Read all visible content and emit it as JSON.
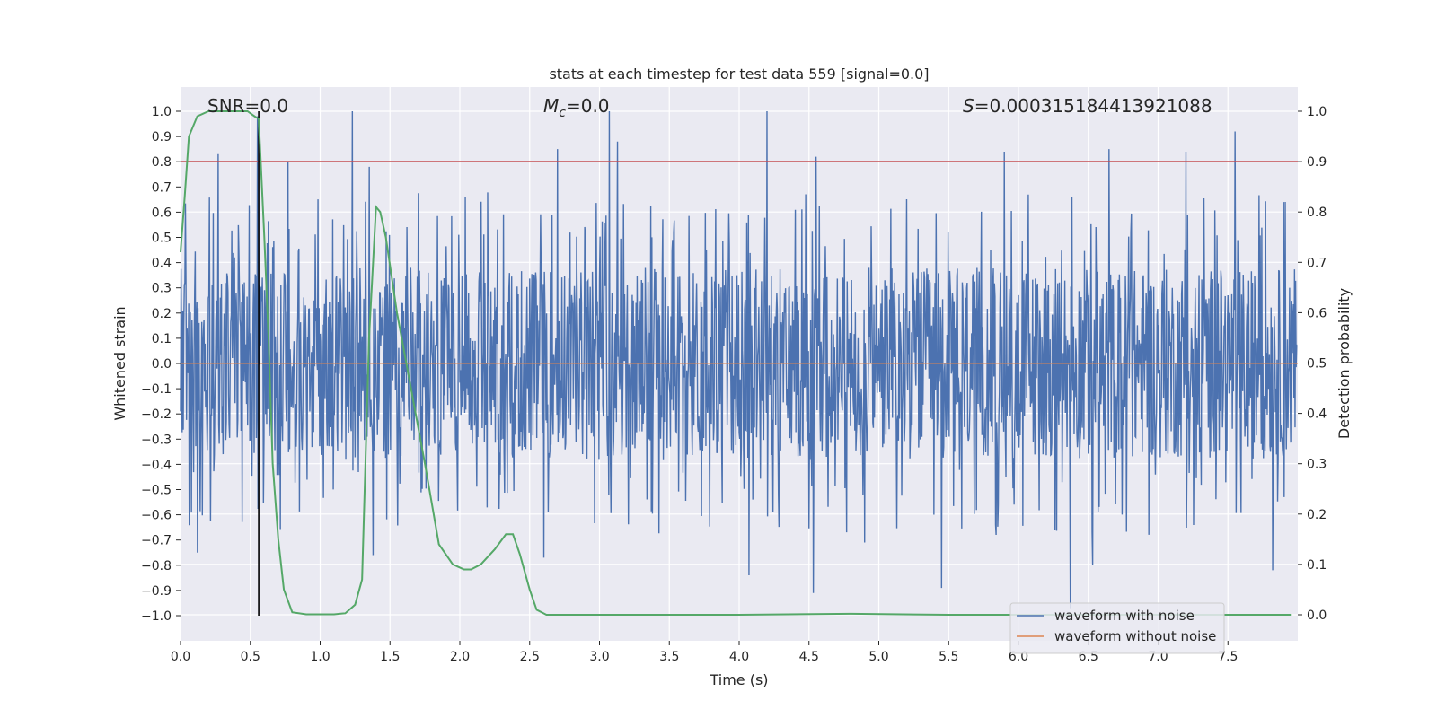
{
  "chart_data": {
    "type": "line",
    "title": "stats at each timestep for test data 559 [signal=0.0]",
    "xlabel": "Time (s)",
    "ylabel_left": "Whitened strain",
    "ylabel_right": "Detection probability",
    "xlim": [
      0.0,
      8.0
    ],
    "ylim_left": [
      -1.09,
      1.09
    ],
    "ylim_right": [
      -0.045,
      1.045
    ],
    "x_ticks": [
      "0.0",
      "0.5",
      "1.0",
      "1.5",
      "2.0",
      "2.5",
      "3.0",
      "3.5",
      "4.0",
      "4.5",
      "5.0",
      "5.5",
      "6.0",
      "6.5",
      "7.0",
      "7.5"
    ],
    "y_ticks_left": [
      "1.0",
      "0.9",
      "0.8",
      "0.7",
      "0.6",
      "0.5",
      "0.4",
      "0.3",
      "0.2",
      "0.1",
      "0.0",
      "−0.1",
      "−0.2",
      "−0.3",
      "−0.4",
      "−0.5",
      "−0.6",
      "−0.7",
      "−0.8",
      "−0.9",
      "−1.0"
    ],
    "y_ticks_right": [
      "1.0",
      "0.9",
      "0.8",
      "0.7",
      "0.6",
      "0.5",
      "0.4",
      "0.3",
      "0.2",
      "0.1",
      "0.0"
    ],
    "annotations": {
      "snr": "SNR=0.0",
      "mc_symbol": "M",
      "mc_sub": "c",
      "mc_value": "=0.0",
      "s_symbol": "S",
      "s_value": "=0.000315184413921088"
    },
    "threshold": {
      "value": 0.9,
      "axis": "right",
      "color": "#c44e52"
    },
    "marker_line": {
      "x": 0.56,
      "ymin": -1.0,
      "ymax": 1.0,
      "color": "#000000"
    },
    "noise_series": {
      "name": "waveform with noise",
      "color": "#4c72b0",
      "samples": 2048,
      "core_amplitude": 0.38,
      "peaks": [
        {
          "x": 0.27,
          "y": 0.83
        },
        {
          "x": 0.55,
          "y": 0.98
        },
        {
          "x": 0.77,
          "y": 0.8
        },
        {
          "x": 1.23,
          "y": 1.0
        },
        {
          "x": 1.35,
          "y": 0.78
        },
        {
          "x": 2.7,
          "y": 0.85
        },
        {
          "x": 3.07,
          "y": 1.0
        },
        {
          "x": 3.13,
          "y": 0.88
        },
        {
          "x": 4.2,
          "y": 1.0
        },
        {
          "x": 4.55,
          "y": 0.82
        },
        {
          "x": 5.9,
          "y": 0.84
        },
        {
          "x": 6.65,
          "y": 0.85
        },
        {
          "x": 7.2,
          "y": 0.84
        },
        {
          "x": 7.55,
          "y": 0.92
        },
        {
          "x": 0.12,
          "y": -0.75
        },
        {
          "x": 1.38,
          "y": -0.76
        },
        {
          "x": 4.07,
          "y": -0.84
        },
        {
          "x": 4.53,
          "y": -0.91
        },
        {
          "x": 5.45,
          "y": -0.89
        },
        {
          "x": 6.37,
          "y": -0.97
        },
        {
          "x": 6.53,
          "y": -0.8
        },
        {
          "x": 7.82,
          "y": -0.82
        },
        {
          "x": 2.6,
          "y": -0.77
        },
        {
          "x": 4.9,
          "y": -0.71
        }
      ]
    },
    "clean_series": {
      "name": "waveform without noise",
      "color": "#dd8452"
    },
    "probability_series": {
      "name": "detection probability",
      "color": "#55a868",
      "x": [
        0.0,
        0.03,
        0.06,
        0.12,
        0.2,
        0.3,
        0.4,
        0.48,
        0.53,
        0.56,
        0.6,
        0.63,
        0.66,
        0.7,
        0.74,
        0.8,
        0.9,
        1.0,
        1.1,
        1.18,
        1.25,
        1.3,
        1.35,
        1.4,
        1.43,
        1.47,
        1.55,
        1.65,
        1.75,
        1.85,
        1.95,
        2.03,
        2.08,
        2.15,
        2.25,
        2.33,
        2.38,
        2.43,
        2.5,
        2.55,
        2.62,
        2.7,
        3.0,
        4.0,
        4.8,
        5.5,
        6.0,
        7.0,
        7.95
      ],
      "y": [
        0.72,
        0.83,
        0.95,
        0.99,
        1.0,
        1.0,
        1.0,
        1.0,
        0.99,
        0.985,
        0.75,
        0.55,
        0.3,
        0.15,
        0.05,
        0.005,
        0.001,
        0.001,
        0.001,
        0.003,
        0.02,
        0.07,
        0.55,
        0.81,
        0.8,
        0.75,
        0.6,
        0.45,
        0.3,
        0.14,
        0.1,
        0.09,
        0.09,
        0.1,
        0.13,
        0.16,
        0.16,
        0.12,
        0.05,
        0.01,
        0.0,
        0.0,
        0.0,
        0.0,
        0.002,
        0.0,
        0.0,
        0.0,
        0.0
      ]
    },
    "legend": {
      "position": "lower-right",
      "entries": [
        {
          "label": "waveform with noise",
          "color": "#4c72b0"
        },
        {
          "label": "waveform without noise",
          "color": "#dd8452"
        }
      ]
    }
  }
}
